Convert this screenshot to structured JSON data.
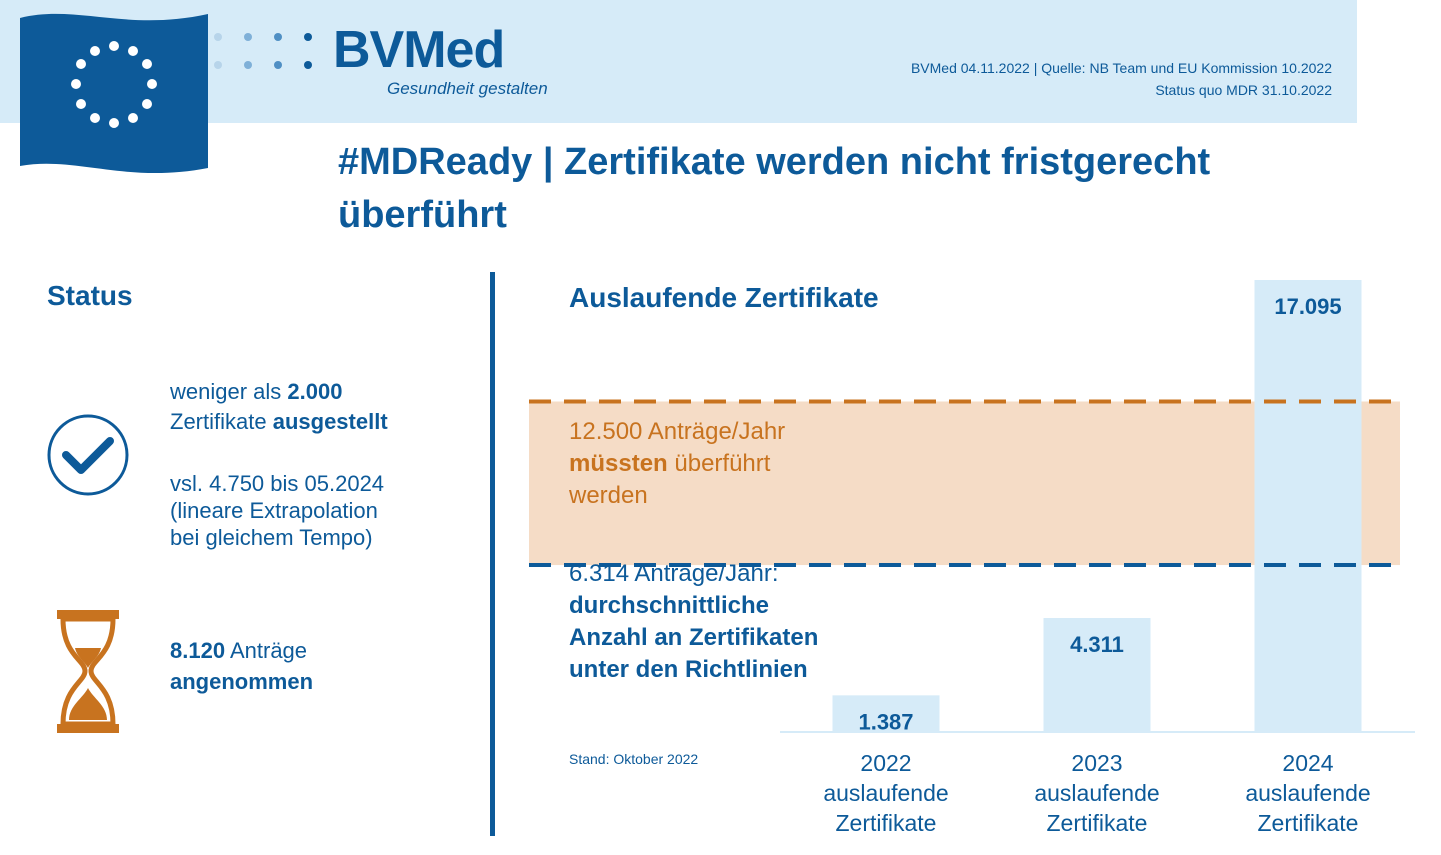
{
  "header": {
    "logo": "BVMed",
    "tagline": "Gesundheit gestalten",
    "meta_line1": "BVMed 04.11.2022 | Quelle: NB Team und EU Kommission 10.2022",
    "meta_line2": "Status quo MDR 31.10.2022"
  },
  "title": "#MDReady | Zertifikate werden nicht fristgerecht überführt",
  "status": {
    "heading": "Status",
    "issued_prefix": "weniger als",
    "issued_number": "2.000",
    "issued_word": "Zertifikate",
    "issued_bold": "ausgestellt",
    "forecast_line1": "vsl. 4.750 bis 05.2024",
    "forecast_line2": "(lineare Extrapolation",
    "forecast_line3": "bei gleichem Tempo)",
    "applications_number": "8.120",
    "applications_word": "Anträge",
    "applications_bold": "angenommen"
  },
  "icons": {
    "check": "check-circle-icon",
    "hourglass": "hourglass-icon"
  },
  "colors": {
    "primary": "#0d5a99",
    "bar": "#d6ebf8",
    "orange": "#c8731f",
    "orange_band": "#f5dcc6"
  },
  "chart_data": {
    "type": "bar",
    "title": "Auslaufende Zertifikate",
    "categories": [
      "2022",
      "2023",
      "2024"
    ],
    "category_sublabel_1": "auslaufende",
    "category_sublabel_2": "Zertifikate",
    "values": [
      1387,
      4311,
      17095
    ],
    "value_labels": [
      "1.387",
      "4.311",
      "17.095"
    ],
    "reference_lines": [
      {
        "value": 12500,
        "color": "orange",
        "label_line1": "12.500 Anträge/Jahr",
        "label_bold": "müssten",
        "label_line2_rest": "überführt",
        "label_line3": "werden"
      },
      {
        "value": 6314,
        "color": "blue",
        "label_line1": "6.314 Anträge/Jahr:",
        "label_bold_line1": "durchschnittliche",
        "label_bold_line2": "Anzahl an Zertifikaten",
        "label_bold_line3": "unter den Richtlinien"
      }
    ],
    "footnote": "Stand: Oktober 2022"
  }
}
